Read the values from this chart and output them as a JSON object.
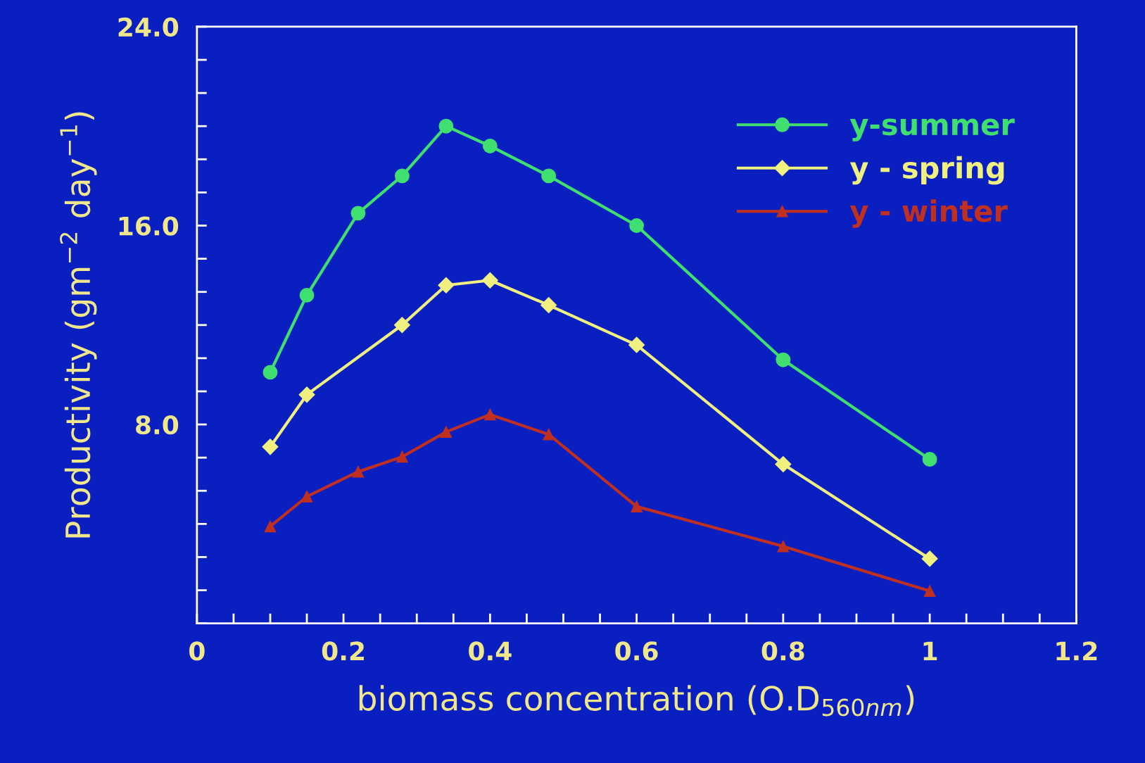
{
  "chart_data": {
    "type": "line",
    "xlabel": "biomass concentration (O.D$_{560nm}$)",
    "ylabel": "Productivity (gm$^{−2}$ day$^{−1}$)",
    "xlim": [
      0,
      1.2
    ],
    "ylim": [
      0,
      24
    ],
    "xticks": [
      0,
      {
        "value": 0.05,
        "label": null
      },
      {
        "value": 0.1,
        "label": null
      },
      {
        "value": 0.15,
        "label": null
      },
      {
        "value": 0.2,
        "label": "0.2"
      },
      {
        "value": 0.25,
        "label": null
      },
      {
        "value": 0.3,
        "label": null
      },
      {
        "value": 0.35,
        "label": null
      },
      {
        "value": 0.4,
        "label": "0.4"
      },
      {
        "value": 0.45,
        "label": null
      },
      {
        "value": 0.5,
        "label": null
      },
      {
        "value": 0.55,
        "label": null
      },
      {
        "value": 0.6,
        "label": "0.6"
      },
      {
        "value": 0.65,
        "label": null
      },
      {
        "value": 0.7,
        "label": null
      },
      {
        "value": 0.75,
        "label": null
      },
      {
        "value": 0.8,
        "label": "0.8"
      },
      {
        "value": 0.85,
        "label": null
      },
      {
        "value": 0.9,
        "label": null
      },
      {
        "value": 0.95,
        "label": null
      },
      {
        "value": 1,
        "label": "1"
      },
      {
        "value": 1.05,
        "label": null
      },
      {
        "value": 1.1,
        "label": null
      },
      {
        "value": 1.15,
        "label": null
      },
      {
        "value": 1.2,
        "label": "1.2"
      }
    ],
    "yticks": [
      {
        "value": 0,
        "label": null
      },
      {
        "value": 1.333,
        "label": null
      },
      {
        "value": 2.667,
        "label": null
      },
      {
        "value": 4,
        "label": null
      },
      {
        "value": 5.333,
        "label": null
      },
      {
        "value": 6.667,
        "label": null
      },
      {
        "value": 8,
        "label": "8.0"
      },
      {
        "value": 9.333,
        "label": null
      },
      {
        "value": 10.667,
        "label": null
      },
      {
        "value": 12,
        "label": null
      },
      {
        "value": 13.333,
        "label": null
      },
      {
        "value": 14.667,
        "label": null
      },
      {
        "value": 16,
        "label": "16.0"
      },
      {
        "value": 17.333,
        "label": null
      },
      {
        "value": 18.667,
        "label": null
      },
      {
        "value": 20,
        "label": null
      },
      {
        "value": 21.333,
        "label": null
      },
      {
        "value": 22.667,
        "label": null
      },
      {
        "value": 24,
        "label": "24.0"
      }
    ],
    "grid": false,
    "legend": "top right",
    "line_style": "solid",
    "series": [
      {
        "name": "y-summer",
        "color": "#40e070",
        "marker": "circle",
        "x": [
          0.1,
          0.15,
          0.22,
          0.28,
          0.34,
          0.4,
          0.48,
          0.6,
          0.8,
          1.0
        ],
        "values": [
          10.1,
          13.2,
          16.5,
          18.0,
          20.0,
          19.2,
          18.0,
          16.0,
          10.6,
          6.6
        ]
      },
      {
        "name": "y - spring",
        "color": "#f0f080",
        "marker": "diamond",
        "x": [
          0.1,
          0.15,
          0.28,
          0.34,
          0.4,
          0.48,
          0.6,
          0.8,
          1.0
        ],
        "values": [
          7.1,
          9.2,
          12.0,
          13.6,
          13.8,
          12.8,
          11.2,
          6.4,
          2.6
        ]
      },
      {
        "name": "y - winter",
        "color": "#c03020",
        "marker": "triangle",
        "x": [
          0.1,
          0.15,
          0.22,
          0.28,
          0.34,
          0.4,
          0.48,
          0.6,
          0.8,
          1.0
        ],
        "values": [
          3.9,
          5.1,
          6.1,
          6.7,
          7.7,
          8.4,
          7.6,
          4.7,
          3.1,
          1.3
        ]
      }
    ]
  }
}
